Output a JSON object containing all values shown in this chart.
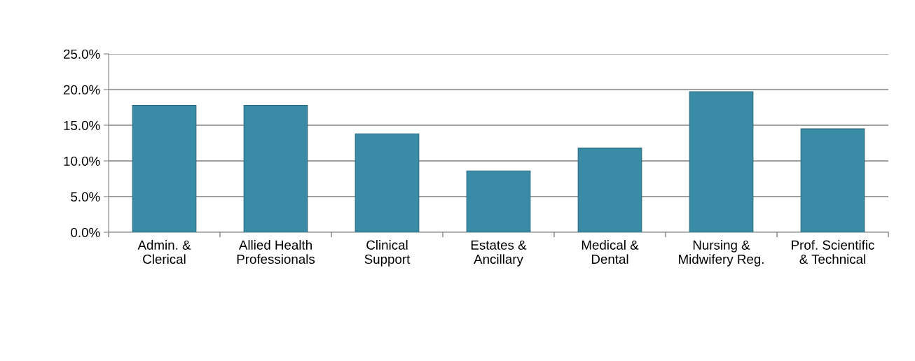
{
  "chart_data": {
    "type": "bar",
    "categories": [
      "Admin. &\nClerical",
      "Allied Health\nProfessionals",
      "Clinical\nSupport",
      "Estates &\nAncillary",
      "Medical &\nDental",
      "Nursing &\nMidwifery Reg.",
      "Prof. Scientific\n& Technical"
    ],
    "values": [
      17.8,
      17.8,
      13.8,
      8.6,
      11.8,
      19.7,
      14.5
    ],
    "color": "#3a8ba6",
    "ylim": [
      0,
      25
    ],
    "yticks": [
      {
        "value": 0,
        "label": "0.0%"
      },
      {
        "value": 5,
        "label": "5.0%"
      },
      {
        "value": 10,
        "label": "10.0%"
      },
      {
        "value": 15,
        "label": "15.0%"
      },
      {
        "value": 20,
        "label": "20.0%"
      },
      {
        "value": 25,
        "label": "25.0%"
      }
    ],
    "grid": "y"
  }
}
